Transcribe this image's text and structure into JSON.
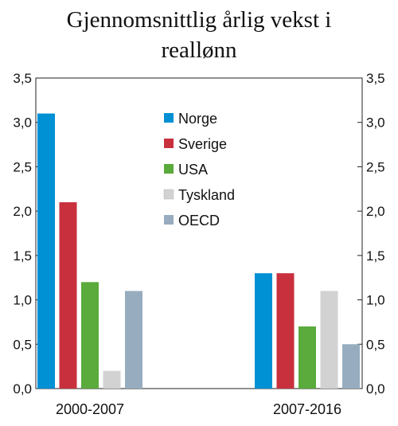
{
  "chart_data": {
    "type": "bar",
    "title_lines": [
      "Gjennomsnittlig årlig vekst i",
      "reallønn"
    ],
    "categories": [
      "2000-2007",
      "2007-2016"
    ],
    "series": [
      {
        "name": "Norge",
        "color": "#0090d4",
        "values": [
          3.1,
          1.3
        ]
      },
      {
        "name": "Sverige",
        "color": "#c9303e",
        "values": [
          2.1,
          1.3
        ]
      },
      {
        "name": "USA",
        "color": "#5aaa3c",
        "values": [
          1.2,
          0.7
        ]
      },
      {
        "name": "Tyskland",
        "color": "#d2d2d2",
        "values": [
          0.2,
          1.1
        ]
      },
      {
        "name": "OECD",
        "color": "#97adbf",
        "values": [
          1.1,
          0.5
        ]
      }
    ],
    "ylim": [
      0,
      3.5
    ],
    "yticks": [
      "0,0",
      "0,5",
      "1,0",
      "1,5",
      "2,0",
      "2,5",
      "3,0",
      "3,5"
    ],
    "grid": false,
    "legend_placement": "top-center"
  }
}
